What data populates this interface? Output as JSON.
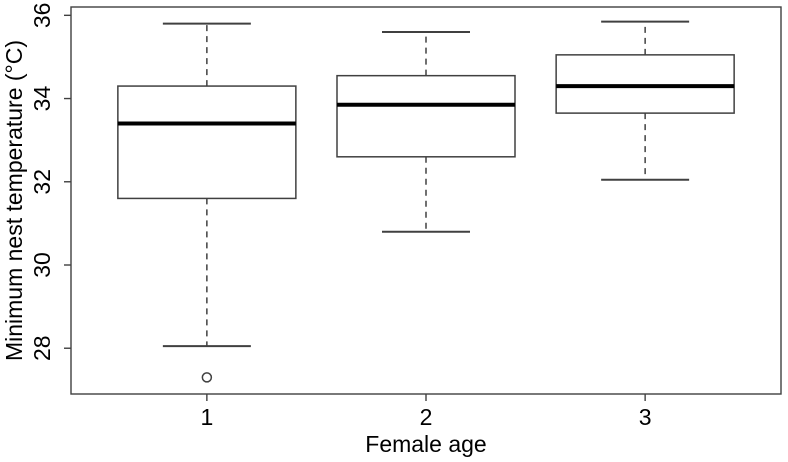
{
  "figure": {
    "background": "#ffffff",
    "frame_color": "#404040",
    "text_color": "#000000"
  },
  "chart_data": {
    "type": "boxplot",
    "title": "",
    "xlabel": "Female age",
    "ylabel": "Minimum nest temperature (°C)",
    "categories": [
      "1",
      "2",
      "3"
    ],
    "ylim": [
      26.9,
      36.2
    ],
    "yticks": [
      28,
      30,
      32,
      34,
      36
    ],
    "grid": false,
    "legend": null,
    "boxes": [
      {
        "category": "1",
        "whisker_low": 28.05,
        "q1": 31.6,
        "median": 33.4,
        "q3": 34.3,
        "whisker_high": 35.8,
        "outliers": [
          27.3
        ]
      },
      {
        "category": "2",
        "whisker_low": 30.8,
        "q1": 32.6,
        "median": 33.85,
        "q3": 34.55,
        "whisker_high": 35.6,
        "outliers": []
      },
      {
        "category": "3",
        "whisker_low": 32.05,
        "q1": 33.65,
        "median": 34.3,
        "q3": 35.05,
        "whisker_high": 35.85,
        "outliers": []
      }
    ],
    "style": {
      "line_color": "#404040",
      "median_color": "#000000",
      "box_fill": "#ffffff",
      "whisker_style": "dashed",
      "outlier_marker": "open-circle"
    }
  }
}
